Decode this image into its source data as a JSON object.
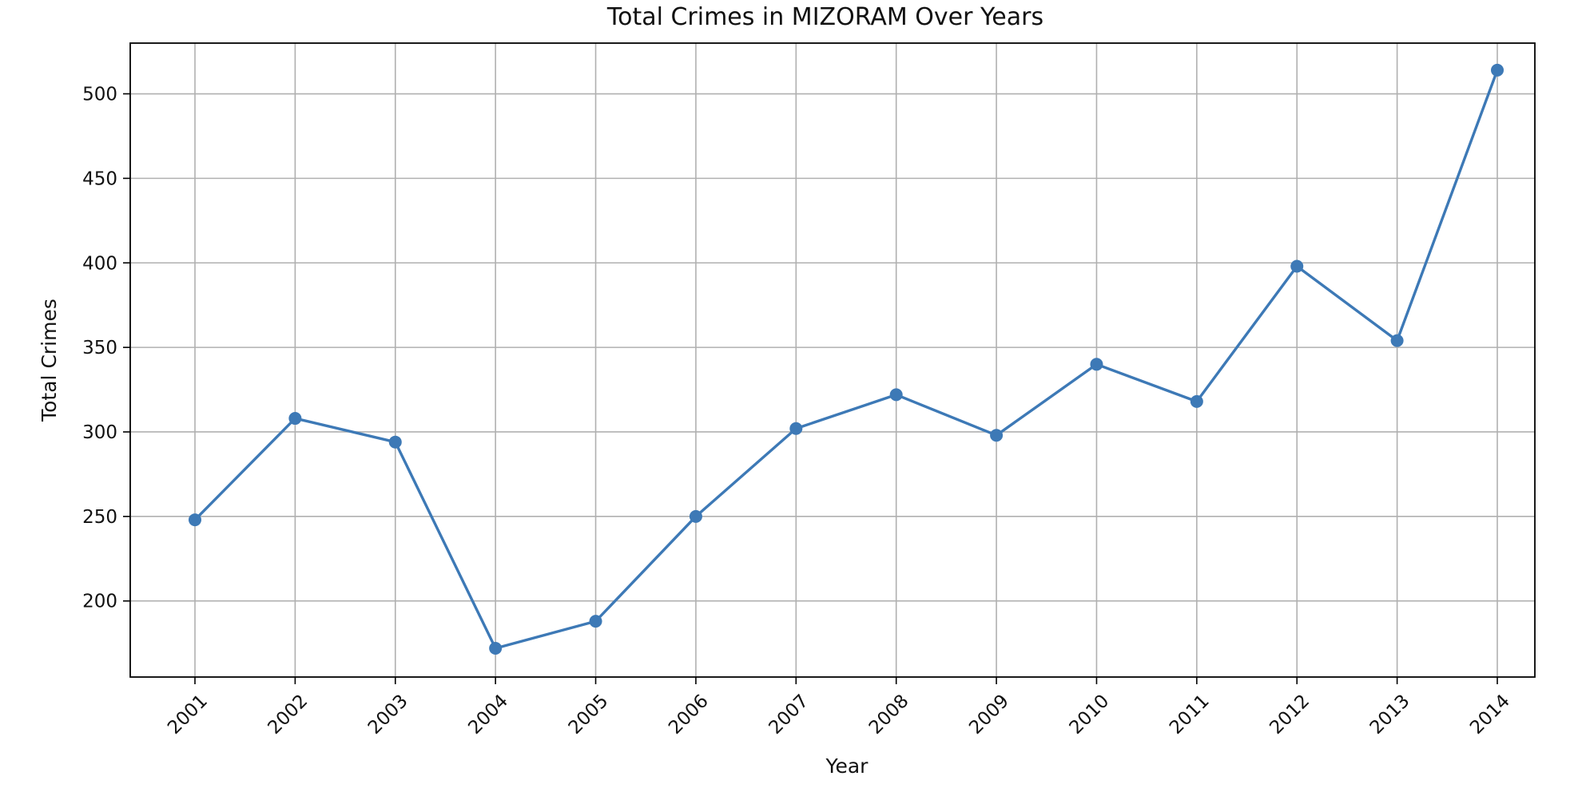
{
  "chart_data": {
    "type": "line",
    "title": "Total Crimes in MIZORAM Over Years",
    "xlabel": "Year",
    "ylabel": "Total Crimes",
    "categories": [
      "2001",
      "2002",
      "2003",
      "2004",
      "2005",
      "2006",
      "2007",
      "2008",
      "2009",
      "2010",
      "2011",
      "2012",
      "2013",
      "2014"
    ],
    "series": [
      {
        "values": [
          248,
          308,
          294,
          172,
          188,
          250,
          302,
          322,
          298,
          340,
          318,
          398,
          354,
          514
        ]
      }
    ],
    "yticks": [
      200,
      250,
      300,
      350,
      400,
      450,
      500
    ],
    "ylim": [
      155,
      530
    ],
    "grid": true,
    "colors": {
      "line": "#3d79b6",
      "marker": "#3d79b6",
      "grid": "#b0b0b0",
      "axes": "#000000",
      "background": "#ffffff"
    }
  }
}
